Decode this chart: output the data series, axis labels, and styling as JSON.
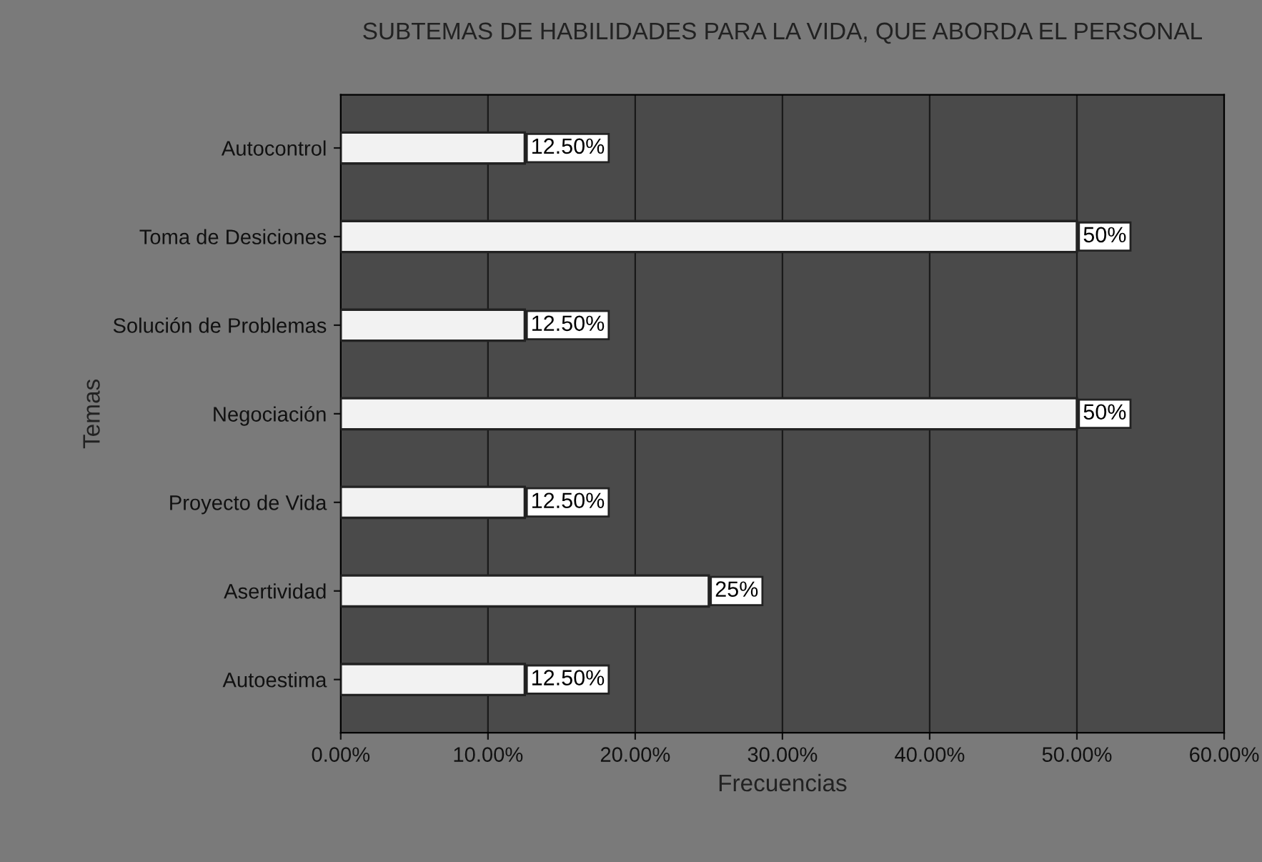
{
  "chart_data": {
    "type": "bar",
    "orientation": "horizontal",
    "title": "SUBTEMAS DE HABILIDADES PARA LA VIDA, QUE ABORDA EL PERSONAL",
    "xlabel": "Frecuencias",
    "ylabel": "Temas",
    "categories": [
      "Autocontrol",
      "Toma de Desiciones",
      "Solución de Problemas",
      "Negociación",
      "Proyecto de Vida",
      "Asertividad",
      "Autoestima"
    ],
    "values": [
      12.5,
      50,
      12.5,
      50,
      12.5,
      25,
      12.5
    ],
    "value_labels": [
      "12.50%",
      "50%",
      "12.50%",
      "50%",
      "12.50%",
      "25%",
      "12.50%"
    ],
    "color": "#f2f2f2",
    "xlim": [
      0,
      60
    ],
    "xticks": [
      {
        "value": 0,
        "label": "0.00%"
      },
      {
        "value": 10,
        "label": "10.00%"
      },
      {
        "value": 20,
        "label": "20.00%"
      },
      {
        "value": 30,
        "label": "30.00%"
      },
      {
        "value": 40,
        "label": "40.00%"
      },
      {
        "value": 50,
        "label": "50.00%"
      },
      {
        "value": 60,
        "label": "60.00%"
      }
    ],
    "grid": "x",
    "legend": false
  }
}
